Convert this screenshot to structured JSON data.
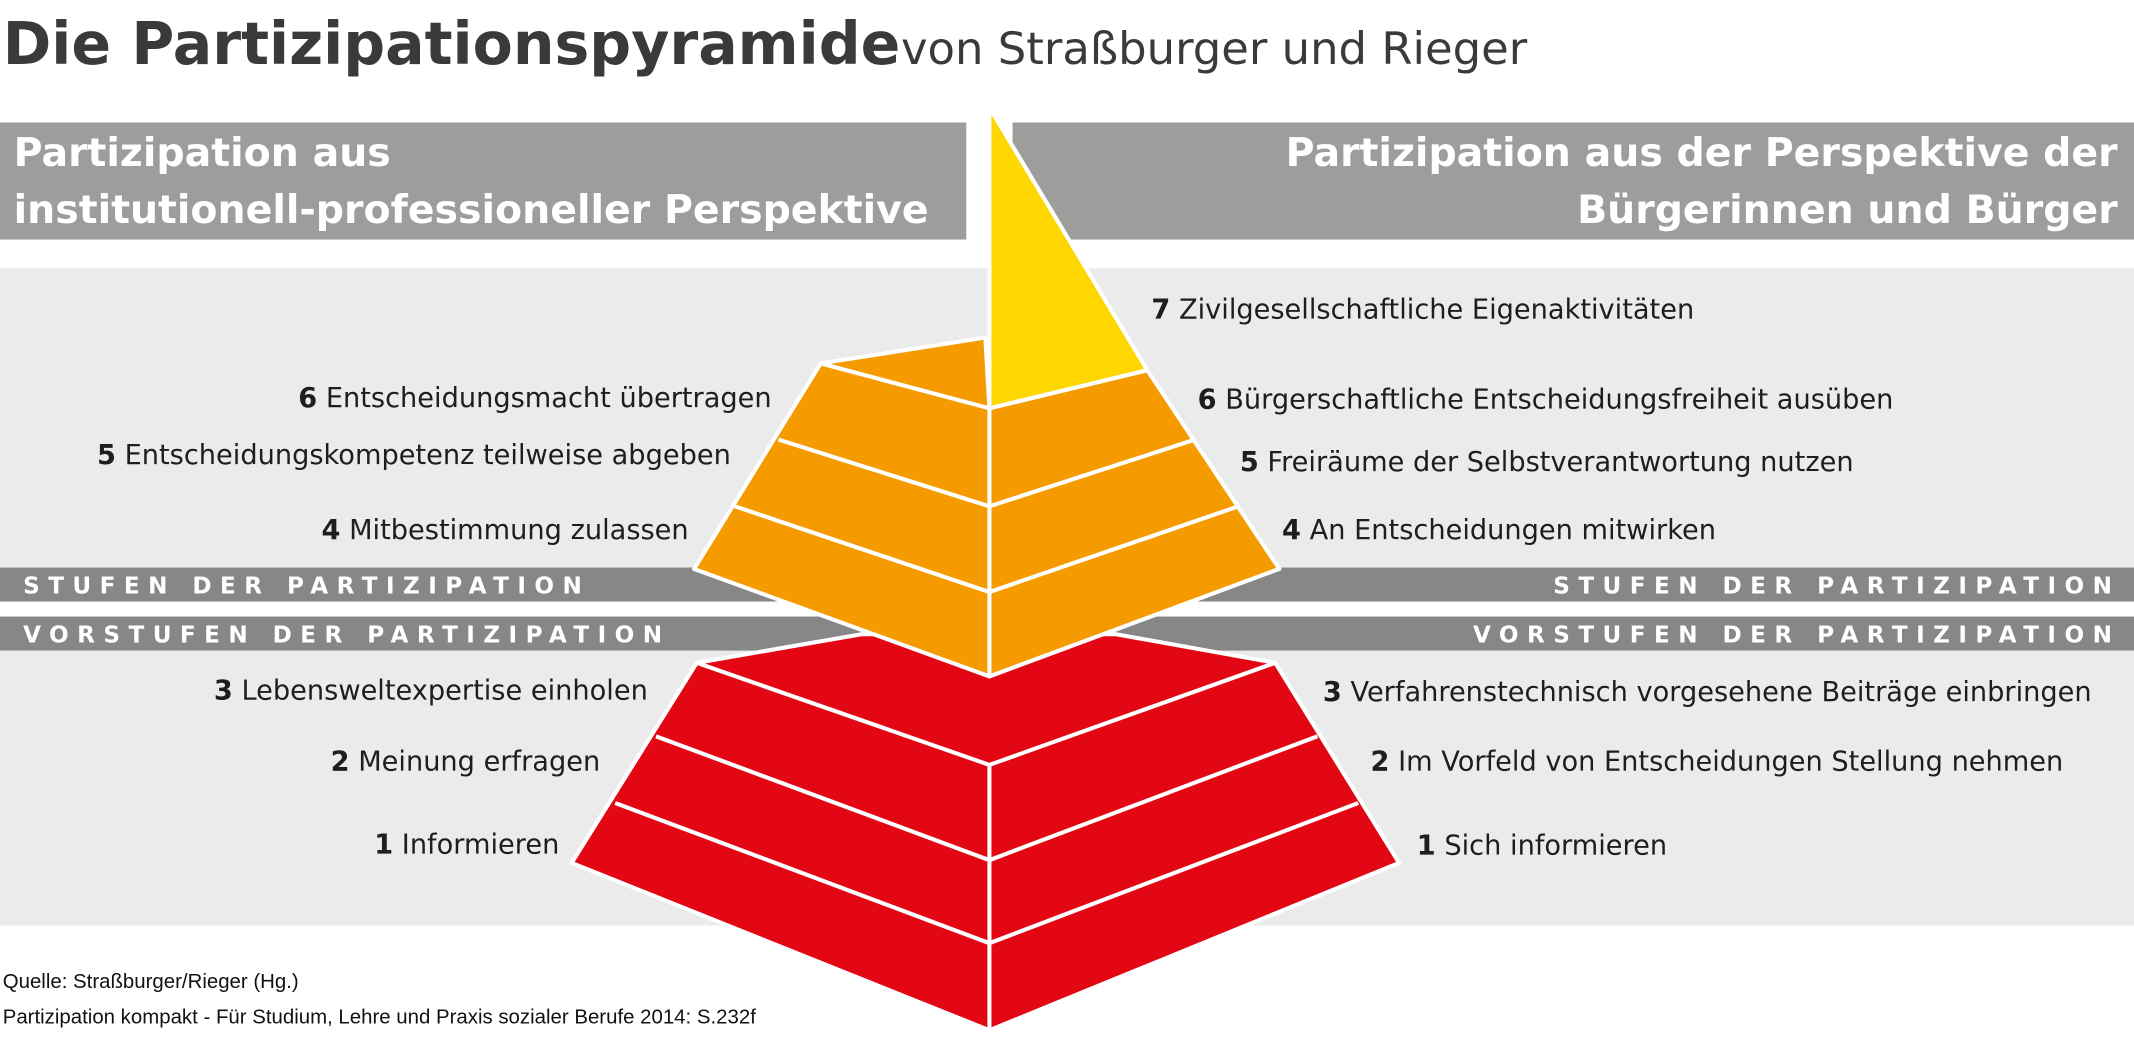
{
  "title": {
    "main": "Die Partizipationspyramide",
    "sub": "von Straßburger und Rieger"
  },
  "headers": {
    "left": [
      "Partizipation aus",
      "institutionell-professioneller Perspektive"
    ],
    "right": [
      "Partizipation aus der Perspektive  der",
      "Bürgerinnen und Bürger"
    ]
  },
  "bands": {
    "stufen": "STUFEN DER PARTIZIPATION",
    "vorstufen": "VORSTUFEN DER PARTIZIPATION"
  },
  "left_levels": [
    {
      "num": "6",
      "text": "Entscheidungsmacht übertragen"
    },
    {
      "num": "5",
      "text": "Entscheidungskompetenz teilweise  abgeben"
    },
    {
      "num": "4",
      "text": "Mitbestimmung zulassen"
    },
    {
      "num": "3",
      "text": "Lebensweltexpertise einholen"
    },
    {
      "num": "2",
      "text": "Meinung erfragen"
    },
    {
      "num": "1",
      "text": "Informieren"
    }
  ],
  "right_levels": [
    {
      "num": "7",
      "text": "Zivilgesellschaftliche Eigenaktivitäten"
    },
    {
      "num": "6",
      "text": "Bürgerschaftliche Entscheidungsfreiheit ausüben"
    },
    {
      "num": "5",
      "text": "Freiräume der Selbstverantwortung nutzen"
    },
    {
      "num": "4",
      "text": "An Entscheidungen mitwirken"
    },
    {
      "num": "3",
      "text": "Verfahrenstechnisch vorgesehene Beiträge einbringen"
    },
    {
      "num": "2",
      "text": "Im Vorfeld von Entscheidungen Stellung nehmen"
    },
    {
      "num": "1",
      "text": "Sich informieren"
    }
  ],
  "source": [
    "Quelle: Straßburger/Rieger (Hg.)",
    "Partizipation kompakt - Für Studium, Lehre und Praxis sozialer Berufe 2014: S.232f"
  ],
  "colors": {
    "yellow": "#FFD700",
    "orange": "#F59B00",
    "red": "#E30613",
    "header_gray": "#9D9D9C",
    "band_gray": "#878787",
    "panel": "#EBEBEB"
  }
}
